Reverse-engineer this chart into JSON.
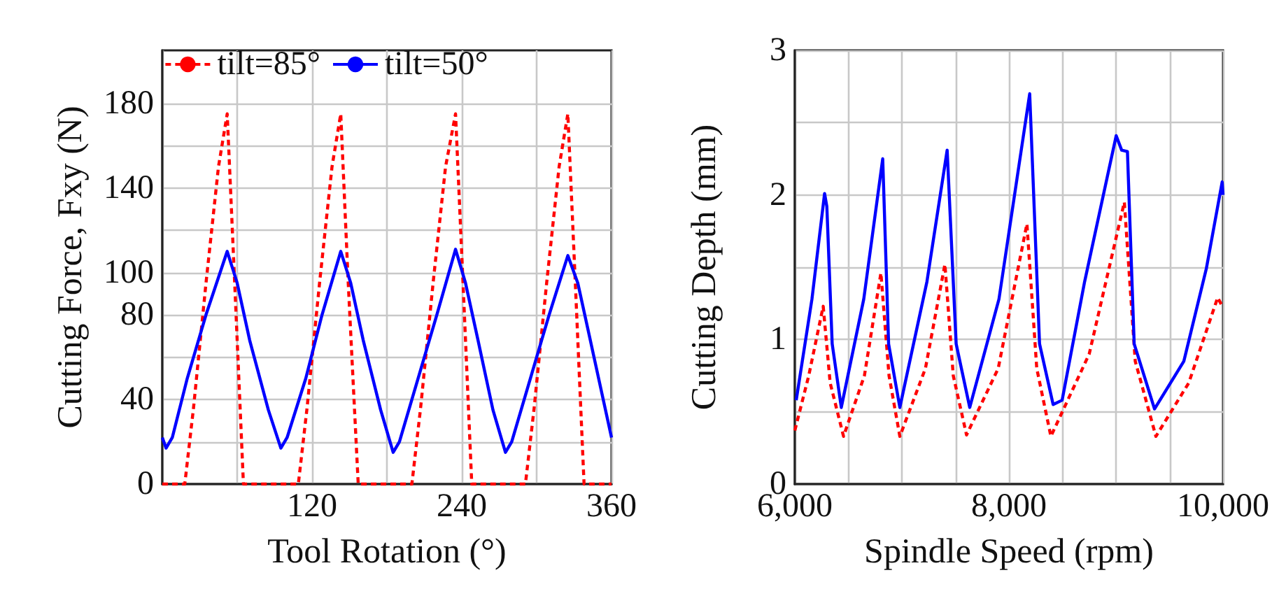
{
  "chart_data": [
    {
      "type": "line",
      "xlabel": "Tool Rotation (°)",
      "ylabel": "Cutting Force, Fxy (N)",
      "xlim": [
        0,
        360
      ],
      "xticks": [
        {
          "value": 0,
          "label": null
        },
        {
          "value": 60,
          "label": null
        },
        120,
        {
          "value": 180,
          "label": null
        },
        240,
        {
          "value": 300,
          "label": null
        },
        360
      ],
      "ylim": [
        0,
        205
      ],
      "yticks": [
        0,
        {
          "value": 20,
          "label": null
        },
        40,
        {
          "value": 60,
          "label": null
        },
        80,
        100,
        {
          "value": 120,
          "label": null
        },
        140,
        {
          "value": 160,
          "label": null
        },
        180
      ],
      "grid": true,
      "legend": "top",
      "marker": "none",
      "series": [
        {
          "name": "tilt=85°",
          "color": "#ff0000",
          "line_style": "dashed",
          "x": [
            0,
            18,
            25,
            35,
            45,
            52,
            58,
            65,
            109,
            116,
            126,
            136,
            143,
            149,
            157,
            200,
            207,
            217,
            227,
            235,
            241,
            248,
            291,
            298,
            308,
            318,
            325,
            331,
            338,
            360
          ],
          "values": [
            0,
            0,
            36,
            95,
            150,
            175,
            95,
            0,
            0,
            36,
            95,
            150,
            175,
            95,
            0,
            0,
            36,
            95,
            150,
            175,
            95,
            0,
            0,
            36,
            95,
            150,
            175,
            95,
            0,
            0
          ]
        },
        {
          "name": "tilt=50°",
          "color": "#0000ff",
          "line_style": "solid",
          "x": [
            0,
            3,
            8,
            20,
            35,
            52,
            60,
            70,
            85,
            95,
            100,
            115,
            128,
            143,
            151,
            161,
            175,
            185,
            190,
            205,
            220,
            235,
            243,
            253,
            265,
            275,
            280,
            295,
            310,
            325,
            333,
            343,
            360
          ],
          "values": [
            22,
            17,
            22,
            50,
            80,
            110,
            95,
            68,
            35,
            17,
            22,
            50,
            80,
            110,
            95,
            68,
            35,
            15,
            20,
            50,
            80,
            111,
            95,
            68,
            35,
            15,
            20,
            50,
            80,
            108,
            95,
            68,
            22
          ]
        }
      ]
    },
    {
      "type": "line",
      "xlabel": "Spindle Speed (rpm)",
      "ylabel": "Cutting Depth (mm)",
      "xlim": [
        6000,
        10000
      ],
      "xticks": [
        {
          "value": 6000,
          "label": "6,000"
        },
        {
          "value": 6500,
          "label": null
        },
        {
          "value": 7000,
          "label": null
        },
        {
          "value": 7500,
          "label": null
        },
        {
          "value": 8000,
          "label": "8,000"
        },
        {
          "value": 8500,
          "label": null
        },
        {
          "value": 9000,
          "label": null
        },
        {
          "value": 9500,
          "label": null
        },
        {
          "value": 10000,
          "label": "10,000"
        }
      ],
      "ylim": [
        0,
        3
      ],
      "yticks": [
        0,
        {
          "value": 0.5,
          "label": null
        },
        1,
        {
          "value": 1.5,
          "label": null
        },
        2,
        {
          "value": 2.5,
          "label": null
        },
        3
      ],
      "grid": true,
      "marker": "none",
      "series": [
        {
          "color": "#ff0000",
          "line_style": "dashed",
          "x": [
            6000,
            6130,
            6265,
            6330,
            6455,
            6650,
            6804,
            6880,
            6981,
            7220,
            7402,
            7480,
            7604,
            7900,
            8168,
            8260,
            8392,
            8750,
            9078,
            9180,
            9373,
            9680,
            9950,
            10000
          ],
          "values": [
            0.37,
            0.75,
            1.23,
            0.7,
            0.33,
            0.75,
            1.46,
            0.75,
            0.33,
            0.8,
            1.52,
            0.75,
            0.34,
            0.8,
            1.8,
            0.8,
            0.33,
            0.9,
            1.95,
            0.85,
            0.33,
            0.7,
            1.29,
            1.22
          ]
        },
        {
          "color": "#0000ff",
          "line_style": "solid",
          "x": [
            6013,
            6160,
            6278,
            6299,
            6349,
            6434,
            6644,
            6821,
            6876,
            6981,
            7234,
            7423,
            7507,
            7634,
            7907,
            8194,
            8286,
            8413,
            8497,
            8707,
            9002,
            9053,
            9107,
            9170,
            9360,
            9634,
            9844,
            9992,
            10000
          ],
          "values": [
            0.58,
            1.28,
            2.01,
            1.92,
            0.97,
            0.53,
            1.28,
            2.25,
            0.97,
            0.53,
            1.4,
            2.31,
            0.97,
            0.53,
            1.28,
            2.7,
            0.97,
            0.55,
            0.58,
            1.4,
            2.41,
            2.31,
            2.3,
            0.97,
            0.52,
            0.85,
            1.49,
            2.09,
            2.0
          ]
        }
      ]
    }
  ]
}
